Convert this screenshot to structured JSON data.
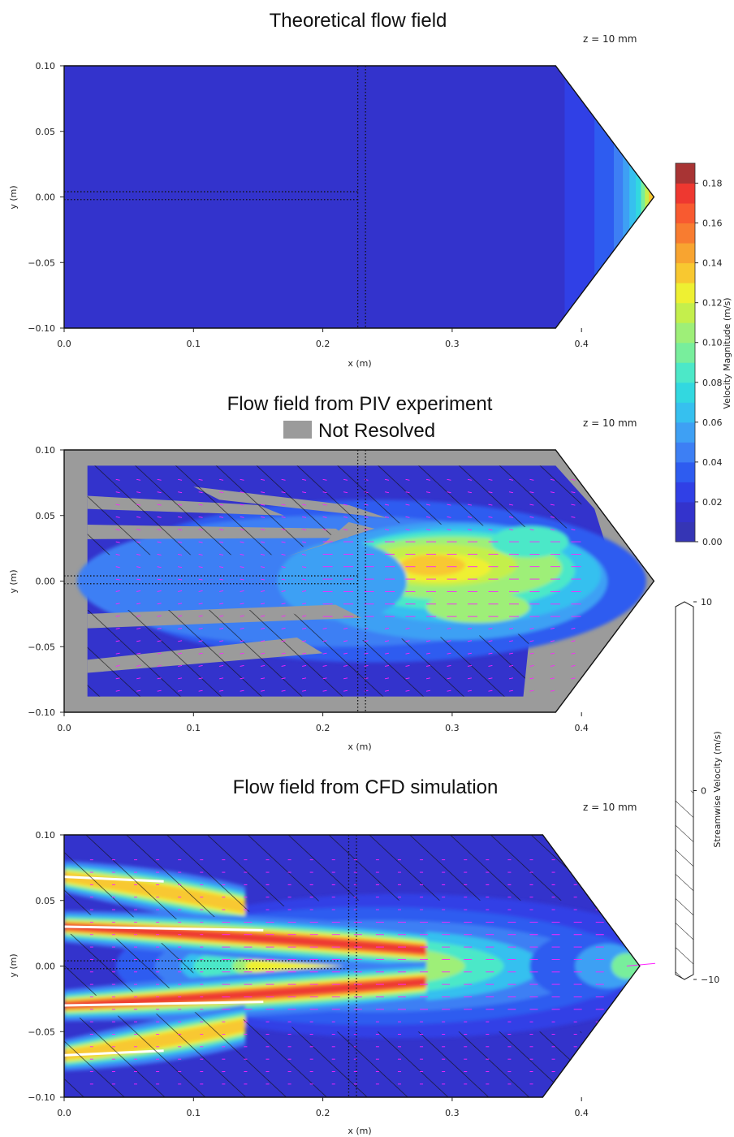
{
  "colors": {
    "colormap": [
      "#3535b5",
      "#3333cc",
      "#3040e6",
      "#2e5cf0",
      "#3d7ff4",
      "#3ea0f4",
      "#36c0ef",
      "#32d8e0",
      "#4ce8c8",
      "#78ee9c",
      "#9eef78",
      "#c4ef4c",
      "#eef032",
      "#f8c830",
      "#f8a430",
      "#f87c30",
      "#f85a30",
      "#ee3830",
      "#a83434"
    ],
    "notResolved": "#9b9b9b",
    "quiver": "#ff22ff"
  },
  "chart_data": [
    {
      "type": "heatmap",
      "id": "theoretical",
      "title": "Theoretical flow field",
      "annotation": "z = 10 mm",
      "xlabel": "x (m)",
      "ylabel": "y (m)",
      "xlim": [
        0.0,
        0.45
      ],
      "ylim": [
        -0.1,
        0.1
      ],
      "xticks": [
        "0.0",
        "0.1",
        "0.2",
        "0.3",
        "0.4"
      ],
      "yticks": [
        "0.10",
        "0.05",
        "0.00",
        "−0.05",
        "−0.10"
      ],
      "outline": [
        [
          0.0,
          0.1
        ],
        [
          0.38,
          0.1
        ],
        [
          0.456,
          0.0
        ],
        [
          0.38,
          -0.1
        ],
        [
          0.0,
          -0.1
        ]
      ],
      "nozzle_x": [
        0.387,
        0.41,
        0.425,
        0.432,
        0.437,
        0.442,
        0.446,
        0.449,
        0.452
      ],
      "nozzle_level": [
        2,
        3,
        4,
        5,
        6,
        7,
        9,
        11,
        13
      ],
      "background_level": 1
    },
    {
      "type": "heatmap",
      "id": "piv",
      "title": "Flow field from PIV experiment",
      "legend": [
        {
          "label": "Not Resolved",
          "color": "#9b9b9b"
        }
      ],
      "annotation": "z = 10 mm",
      "xlabel": "x (m)",
      "ylabel": "y (m)",
      "xlim": [
        0.0,
        0.45
      ],
      "ylim": [
        -0.1,
        0.1
      ],
      "xticks": [
        "0.0",
        "0.1",
        "0.2",
        "0.3",
        "0.4"
      ],
      "yticks": [
        "0.10",
        "0.05",
        "0.00",
        "−0.05",
        "−0.10"
      ],
      "core": {
        "x_start": 0.23,
        "x_end": 0.4,
        "y_center": 0.0,
        "peak_level": 13
      },
      "negative_velocity_hatched": true
    },
    {
      "type": "heatmap",
      "id": "cfd",
      "title": "Flow field from CFD simulation",
      "annotation": "z = 10 mm",
      "xlabel": "x (m)",
      "ylabel": "y (m)",
      "xlim": [
        0.0,
        0.45
      ],
      "ylim": [
        -0.1,
        0.1
      ],
      "xticks": [
        "0.0",
        "0.1",
        "0.2",
        "0.3",
        "0.4"
      ],
      "yticks": [
        "0.10",
        "0.05",
        "0.00",
        "−0.05",
        "−0.10"
      ],
      "jets_y": [
        0.068,
        0.03,
        -0.03,
        -0.068
      ],
      "peak_level": 17,
      "negative_velocity_hatched": true
    }
  ],
  "colorbars": [
    {
      "label": "Velocity Magnitude (m/s)",
      "ticks": [
        "0.00",
        "0.02",
        "0.04",
        "0.06",
        "0.08",
        "0.10",
        "0.12",
        "0.14",
        "0.16",
        "0.18"
      ],
      "values": [
        0.0,
        0.02,
        0.04,
        0.06,
        0.08,
        0.1,
        0.12,
        0.14,
        0.16,
        0.18
      ],
      "range": [
        0.0,
        0.19
      ]
    },
    {
      "label": "Streamwise Velocity (m/s)",
      "ticks": [
        "10",
        "0",
        "−10"
      ],
      "values": [
        10,
        0,
        -10
      ],
      "range": [
        -10,
        10
      ]
    }
  ]
}
